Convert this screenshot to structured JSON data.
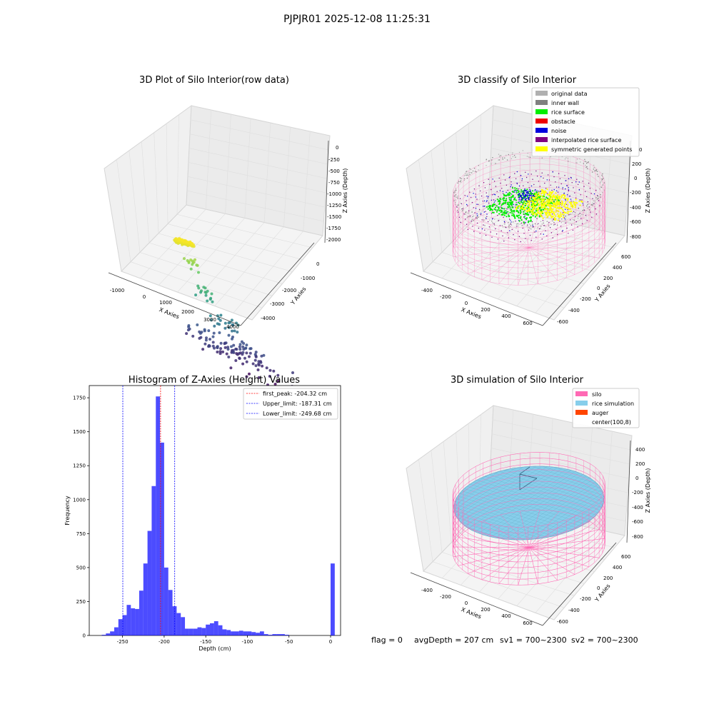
{
  "figure": {
    "suptitle": "PJPJR01 2025-12-08 11:25:31",
    "footer": {
      "flag": "flag = 0",
      "avg_depth": "avgDepth = 207 cm",
      "sv1": "sv1 = 700~2300",
      "sv2": "sv2 = 700~2300"
    }
  },
  "panels": {
    "raw": {
      "title": "3D Plot of Silo Interior(row data)",
      "x_label": "X Axies",
      "y_label": "Y Axies",
      "z_label": "Z Axies (Depth)",
      "x_ticks": [
        "-1000",
        "0",
        "1000",
        "2000",
        "3000",
        "4000"
      ],
      "y_ticks": [
        "0",
        "-1000",
        "-2000",
        "-3000",
        "-4000"
      ],
      "z_ticks": [
        "0",
        "-250",
        "-500",
        "-750",
        "-1000",
        "-1250",
        "-1500",
        "-1750",
        "-2000"
      ]
    },
    "classify": {
      "title": "3D classify of Silo Interior",
      "x_label": "X Axies",
      "y_label": "Y Axies",
      "z_label": "Z Axies (Depth)",
      "x_ticks": [
        "-400",
        "-200",
        "0",
        "200",
        "400",
        "600"
      ],
      "y_ticks": [
        "600",
        "400",
        "200",
        "0",
        "-200",
        "-400",
        "-600"
      ],
      "z_ticks": [
        "200",
        "0",
        "-200",
        "-400",
        "-600",
        "-800"
      ],
      "z_top_tick": "0",
      "legend": [
        {
          "label": "original data",
          "color": "#b0b0b0"
        },
        {
          "label": "inner wall",
          "color": "#808080"
        },
        {
          "label": "rice surface",
          "color": "#00ee00"
        },
        {
          "label": "obstacle",
          "color": "#ee0000"
        },
        {
          "label": "noise",
          "color": "#0000dd"
        },
        {
          "label": "interpolated rice surface",
          "color": "#800080"
        },
        {
          "label": "symmetric generated points",
          "color": "#ffff00"
        }
      ]
    },
    "simulation": {
      "title": "3D simulation of Silo Interior",
      "x_label": "X Axies",
      "y_label": "Y Axies",
      "z_label": "Z Axies (Depth)",
      "x_ticks": [
        "-400",
        "-200",
        "0",
        "200",
        "400",
        "600"
      ],
      "y_ticks": [
        "600",
        "400",
        "200",
        "0",
        "-200",
        "-400",
        "-600"
      ],
      "z_ticks": [
        "400",
        "200",
        "0",
        "-200",
        "-400",
        "-600",
        "-800"
      ],
      "legend": [
        {
          "label": "silo",
          "color": "#ff69b4"
        },
        {
          "label": "rice simulation",
          "color": "#87ceeb"
        },
        {
          "label": "auger",
          "color": "#ff4500"
        },
        {
          "label": "center(100,8)",
          "color": "#ffffff"
        }
      ],
      "colors": {
        "silo": "#ff69b4",
        "rice": "#87ceeb",
        "auger_line": "#2f4f6f"
      }
    }
  },
  "chart_data": [
    {
      "type": "scatter",
      "title": "3D Plot of Silo Interior(row data)",
      "xlabel": "X Axies",
      "ylabel": "Y Axies",
      "zlabel": "Z Axies (Depth)",
      "xlim": [
        -1500,
        4500
      ],
      "ylim": [
        -4500,
        500
      ],
      "zlim": [
        -2100,
        100
      ],
      "colormap": "viridis",
      "clusters": [
        {
          "x": [
            -400,
            400
          ],
          "y": [
            -100,
            100
          ],
          "z": [
            -10,
            80
          ],
          "n": 90
        },
        {
          "x": [
            -300,
            300
          ],
          "y": [
            -800,
            -400
          ],
          "z": [
            -450,
            -200
          ],
          "n": 14
        },
        {
          "x": [
            -100,
            500
          ],
          "y": [
            -1500,
            -700
          ],
          "z": [
            -900,
            -600
          ],
          "n": 16
        },
        {
          "x": [
            0,
            1600
          ],
          "y": [
            -2200,
            -1200
          ],
          "z": [
            -1300,
            -1100
          ],
          "n": 22
        },
        {
          "x": [
            -600,
            2400
          ],
          "y": [
            -2800,
            -1200
          ],
          "z": [
            -1850,
            -1500
          ],
          "n": 95
        },
        {
          "x": [
            200,
            3500
          ],
          "y": [
            -4200,
            -2200
          ],
          "z": [
            -2050,
            -1700
          ],
          "n": 24
        }
      ]
    },
    {
      "type": "scatter",
      "title": "3D classify of Silo Interior",
      "xlabel": "X Axies",
      "ylabel": "Y Axies",
      "zlabel": "Z Axies (Depth)",
      "xlim": [
        -500,
        700
      ],
      "ylim": [
        -700,
        700
      ],
      "zlim": [
        -900,
        300
      ],
      "series": [
        {
          "name": "original data",
          "color": "#b0b0b0",
          "z_level": 0
        },
        {
          "name": "inner wall",
          "color": "#808080",
          "z_level": 0
        },
        {
          "name": "rice surface",
          "color": "#00ee00",
          "z_level": -200
        },
        {
          "name": "obstacle",
          "color": "#ee0000",
          "z_level": -200
        },
        {
          "name": "noise",
          "color": "#0000dd",
          "z_level": -150
        },
        {
          "name": "interpolated rice surface",
          "color": "#800080",
          "z_level": -250
        },
        {
          "name": "symmetric generated points",
          "color": "#ffff00",
          "z_level": -220
        }
      ],
      "silo_cylinder": {
        "center": [
          100,
          8
        ],
        "radius": 600,
        "z_range": [
          -900,
          0
        ],
        "color": "#ff69b4"
      }
    },
    {
      "type": "bar",
      "title": "Histogram of Z-Axies (Height) Values",
      "xlabel": "Depth (cm)",
      "ylabel": "Frequency",
      "xlim": [
        -290,
        12
      ],
      "ylim": [
        0,
        1840
      ],
      "xticks": [
        -250,
        -200,
        -150,
        -100,
        -50,
        0
      ],
      "yticks": [
        0,
        250,
        500,
        750,
        1000,
        1250,
        1500,
        1750
      ],
      "bin_width": 5,
      "bin_starts": [
        -275,
        -270,
        -265,
        -260,
        -255,
        -250,
        -245,
        -240,
        -235,
        -230,
        -225,
        -220,
        -215,
        -210,
        -205,
        -200,
        -195,
        -190,
        -185,
        -180,
        -175,
        -170,
        -165,
        -160,
        -155,
        -150,
        -145,
        -140,
        -135,
        -130,
        -125,
        -120,
        -115,
        -110,
        -105,
        -100,
        -95,
        -90,
        -85,
        -80,
        -75,
        -70,
        -65,
        -60,
        -55,
        -50,
        -45,
        -40,
        -35,
        -30,
        -25,
        -20,
        -15,
        -10,
        -5,
        0
      ],
      "values": [
        5,
        15,
        30,
        60,
        120,
        150,
        225,
        200,
        195,
        330,
        530,
        770,
        1100,
        1760,
        1420,
        500,
        335,
        215,
        165,
        135,
        50,
        50,
        50,
        60,
        55,
        80,
        90,
        105,
        75,
        45,
        40,
        30,
        30,
        35,
        30,
        30,
        25,
        20,
        30,
        10,
        5,
        10,
        10,
        10,
        5,
        0,
        0,
        0,
        0,
        0,
        0,
        0,
        0,
        0,
        0,
        530
      ],
      "bar_color": "#0000ff",
      "vlines": [
        {
          "name": "first_peak: -204.32 cm",
          "x": -204.32,
          "color": "#ff0000"
        },
        {
          "name": "Upper_limit: -187.31 cm",
          "x": -187.31,
          "color": "#0000ff"
        },
        {
          "name": "Lower_limit: -249.68 cm",
          "x": -249.68,
          "color": "#0000ff"
        }
      ]
    },
    {
      "type": "scatter",
      "title": "3D simulation of Silo Interior",
      "xlabel": "X Axies",
      "ylabel": "Y Axies",
      "zlabel": "Z Axies (Depth)",
      "xlim": [
        -500,
        700
      ],
      "ylim": [
        -700,
        700
      ],
      "zlim": [
        -900,
        450
      ],
      "silo": {
        "center": [
          100,
          8
        ],
        "radius": 600,
        "z_range": [
          -900,
          0
        ]
      },
      "rice_surface_depth": -207
    }
  ]
}
